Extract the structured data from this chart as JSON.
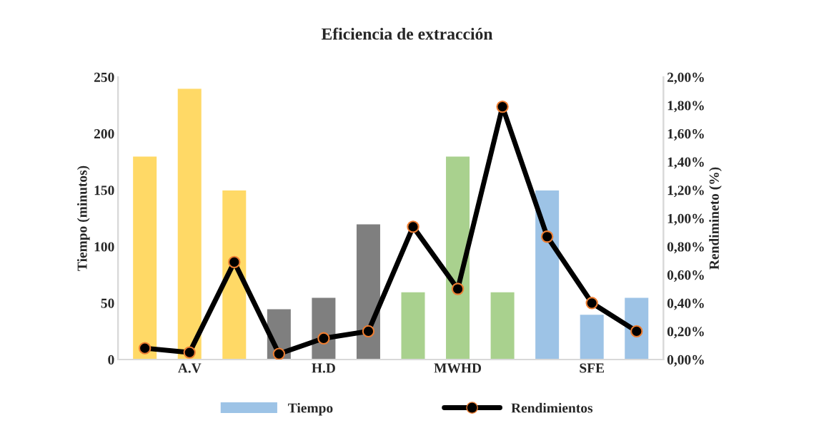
{
  "chart_data": {
    "type": "bar",
    "title": "Eficiencia de extracción",
    "ylabel": "Tiempo (minutos)",
    "y2label": "Rendimineto (%)",
    "categories": [
      null,
      "A.V",
      null,
      null,
      "H.D",
      null,
      null,
      "MWHD",
      null,
      null,
      "SFE",
      null
    ],
    "series": [
      {
        "name": "Tiempo",
        "color": "#9dc3e6",
        "colors": [
          "#ffd966",
          "#ffd966",
          "#ffd966",
          "#7f7f7f",
          "#7f7f7f",
          "#7f7f7f",
          "#a9d18e",
          "#a9d18e",
          "#a9d18e",
          "#9dc3e6",
          "#9dc3e6",
          "#9dc3e6"
        ],
        "values": [
          180,
          240,
          150,
          45,
          55,
          120,
          60,
          180,
          60,
          150,
          40,
          55
        ]
      },
      {
        "name": "Rendimientos",
        "type": "line",
        "axis": "y2",
        "color": "#000000",
        "marker": "circle",
        "values": [
          0.08,
          0.05,
          0.69,
          0.04,
          0.15,
          0.2,
          0.94,
          0.5,
          1.79,
          0.87,
          0.4,
          0.2
        ]
      }
    ],
    "ylim": [
      0,
      250
    ],
    "yticks": [
      0,
      50,
      100,
      150,
      200,
      250
    ],
    "y2lim": [
      0,
      2
    ],
    "y2ticks": [
      {
        "value": 0,
        "label": "0,00%"
      },
      {
        "value": 0.2,
        "label": "0,20%"
      },
      {
        "value": 0.4,
        "label": "0,40%"
      },
      {
        "value": 0.6,
        "label": "0,60%"
      },
      {
        "value": 0.8,
        "label": "0,80%"
      },
      {
        "value": 1.0,
        "label": "1,00%"
      },
      {
        "value": 1.2,
        "label": "1,20%"
      },
      {
        "value": 1.4,
        "label": "1,40%"
      },
      {
        "value": 1.6,
        "label": "1,60%"
      },
      {
        "value": 1.8,
        "label": "1,80%"
      },
      {
        "value": 2.0,
        "label": "2,00%"
      }
    ],
    "grid": false,
    "legend": "bottom"
  }
}
